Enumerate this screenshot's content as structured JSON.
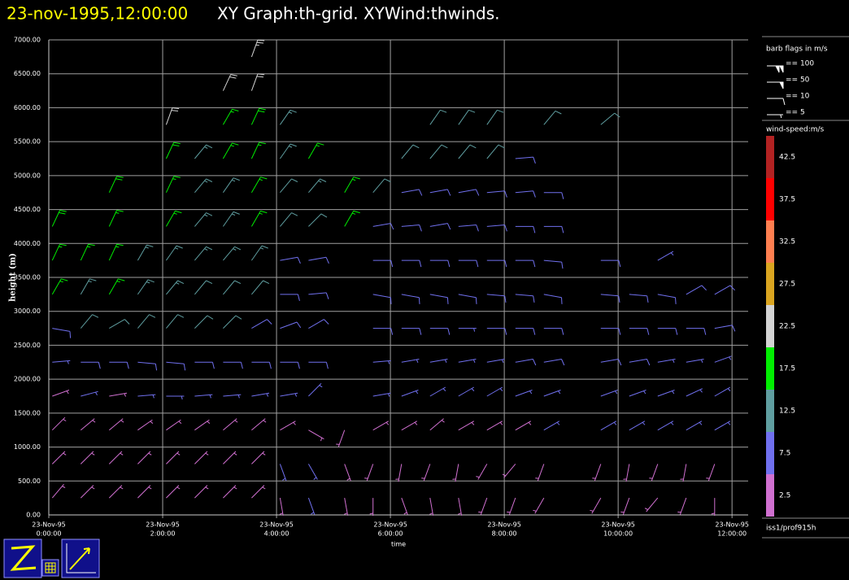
{
  "chart_data": {
    "type": "wind-barb",
    "title_time": "23-nov-1995,12:00:00",
    "title": "XY Graph:th-grid.  XYWind:thwinds.",
    "y_label": "height (m)",
    "x_label": "time",
    "ylim": [
      0,
      7000
    ],
    "yticks": [
      {
        "value": 0,
        "label": "0.00"
      },
      {
        "value": 500,
        "label": "500.00"
      },
      {
        "value": 1000,
        "label": "1000.00"
      },
      {
        "value": 1500,
        "label": "1500.00"
      },
      {
        "value": 2000,
        "label": "2000.00"
      },
      {
        "value": 2500,
        "label": "2500.00"
      },
      {
        "value": 3000,
        "label": "3000.00"
      },
      {
        "value": 3500,
        "label": "3500.00"
      },
      {
        "value": 4000,
        "label": "4000.00"
      },
      {
        "value": 4500,
        "label": "4500.00"
      },
      {
        "value": 5000,
        "label": "5000.00"
      },
      {
        "value": 5500,
        "label": "5500.00"
      },
      {
        "value": 6000,
        "label": "6000.00"
      },
      {
        "value": 6500,
        "label": "6500.00"
      },
      {
        "value": 7000,
        "label": "7000.00"
      }
    ],
    "xlim": [
      "0:00:00",
      "12:17:00"
    ],
    "xticks": [
      {
        "value": "0:00:00",
        "label": [
          "23-Nov-95",
          "0:00:00"
        ]
      },
      {
        "value": "2:00:00",
        "label": [
          "23-Nov-95",
          "2:00:00"
        ]
      },
      {
        "value": "4:00:00",
        "label": [
          "23-Nov-95",
          "4:00:00"
        ]
      },
      {
        "value": "6:00:00",
        "label": [
          "23-Nov-95",
          "6:00:00"
        ]
      },
      {
        "value": "8:00:00",
        "label": [
          "23-Nov-95",
          "8:00:00"
        ]
      },
      {
        "value": "10:00:00",
        "label": [
          "23-Nov-95",
          "10:00:00"
        ]
      },
      {
        "value": "12:00:00",
        "label": [
          "23-Nov-95",
          "12:00:00"
        ]
      }
    ],
    "grid": true,
    "grid_color": "#a0a0a0",
    "heights": [
      250,
      750,
      1250,
      1750,
      2250,
      2750,
      3250,
      3750,
      4250,
      4750,
      5250,
      5750,
      6250,
      6750
    ],
    "profiles": [
      {
        "time": "0:02:00",
        "speed": [
          3,
          3,
          4,
          4,
          7,
          9,
          16,
          17,
          18,
          null,
          null,
          null,
          null,
          null
        ],
        "direction": [
          40,
          45,
          45,
          70,
          85,
          100,
          30,
          25,
          25,
          null,
          null,
          null,
          null,
          null
        ]
      },
      {
        "time": "0:32:00",
        "speed": [
          3,
          4,
          4,
          6,
          8,
          12,
          15,
          16,
          null,
          null,
          null,
          null,
          null,
          null
        ],
        "direction": [
          45,
          45,
          50,
          75,
          90,
          40,
          30,
          25,
          null,
          null,
          null,
          null,
          null,
          null
        ]
      },
      {
        "time": "1:02:00",
        "speed": [
          3,
          3,
          4,
          5,
          8,
          12,
          16,
          17,
          17,
          18,
          null,
          null,
          null,
          null
        ],
        "direction": [
          45,
          45,
          50,
          80,
          90,
          60,
          30,
          25,
          25,
          25,
          null,
          null,
          null,
          null
        ]
      },
      {
        "time": "1:32:00",
        "speed": [
          3,
          4,
          4,
          7,
          8,
          12,
          13,
          14,
          null,
          null,
          null,
          null,
          null,
          null
        ],
        "direction": [
          45,
          45,
          55,
          85,
          95,
          40,
          35,
          30,
          null,
          null,
          null,
          null,
          null,
          null
        ]
      },
      {
        "time": "2:02:00",
        "speed": [
          3,
          4,
          5,
          7,
          8,
          12,
          13,
          14,
          16,
          17,
          18,
          22,
          null,
          null
        ],
        "direction": [
          45,
          45,
          55,
          90,
          95,
          40,
          40,
          35,
          30,
          25,
          25,
          20,
          null,
          null
        ]
      },
      {
        "time": "2:32:00",
        "speed": [
          3,
          4,
          5,
          7,
          8,
          11,
          12,
          13,
          13,
          13,
          13,
          null,
          null,
          null
        ],
        "direction": [
          45,
          45,
          55,
          85,
          90,
          45,
          40,
          40,
          40,
          40,
          40,
          null,
          null,
          null
        ]
      },
      {
        "time": "3:02:00",
        "speed": [
          3,
          4,
          5,
          7,
          8,
          11,
          12,
          13,
          13,
          14,
          16,
          17,
          22,
          null
        ],
        "direction": [
          45,
          45,
          50,
          85,
          90,
          45,
          40,
          40,
          35,
          35,
          30,
          30,
          25,
          null
        ]
      },
      {
        "time": "3:32:00",
        "speed": [
          3,
          4,
          5,
          7,
          8,
          9,
          12,
          13,
          16,
          17,
          17,
          18,
          22,
          23
        ],
        "direction": [
          45,
          45,
          50,
          80,
          90,
          60,
          40,
          35,
          30,
          30,
          25,
          25,
          20,
          20
        ]
      },
      {
        "time": "4:02:00",
        "speed": [
          5,
          6,
          5,
          7,
          8,
          9,
          8,
          9,
          11,
          12,
          13,
          13,
          null,
          null
        ],
        "direction": [
          170,
          160,
          60,
          80,
          90,
          70,
          90,
          80,
          40,
          40,
          35,
          35,
          null,
          null
        ]
      },
      {
        "time": "4:32:00",
        "speed": [
          6,
          7,
          4,
          6,
          8,
          9,
          8,
          9,
          11,
          13,
          16,
          null,
          null,
          null
        ],
        "direction": [
          160,
          150,
          120,
          45,
          90,
          60,
          85,
          80,
          45,
          40,
          30,
          null,
          null,
          null
        ]
      },
      {
        "time": "5:10:00",
        "speed": [
          4,
          3,
          3,
          null,
          null,
          null,
          null,
          null,
          16,
          17,
          null,
          null,
          null,
          null
        ],
        "direction": [
          170,
          160,
          200,
          null,
          null,
          null,
          null,
          null,
          30,
          30,
          null,
          null,
          null,
          null
        ]
      },
      {
        "time": "5:40:00",
        "speed": [
          4,
          3,
          5,
          6,
          7,
          8,
          9,
          9,
          8,
          12,
          null,
          null,
          null,
          null
        ],
        "direction": [
          180,
          200,
          60,
          80,
          85,
          90,
          100,
          90,
          80,
          40,
          null,
          null,
          null,
          null
        ]
      },
      {
        "time": "6:10:00",
        "speed": [
          5,
          4,
          5,
          6,
          7,
          8,
          9,
          9,
          9,
          9,
          12,
          null,
          null,
          null
        ],
        "direction": [
          160,
          190,
          60,
          70,
          80,
          90,
          100,
          90,
          85,
          80,
          40,
          null,
          null,
          null
        ]
      },
      {
        "time": "6:40:00",
        "speed": [
          5,
          3,
          5,
          6,
          7,
          8,
          8,
          9,
          9,
          9,
          11,
          12,
          null,
          null
        ],
        "direction": [
          170,
          200,
          50,
          60,
          80,
          90,
          100,
          90,
          80,
          80,
          40,
          35,
          null,
          null
        ]
      },
      {
        "time": "7:10:00",
        "speed": [
          4,
          3,
          5,
          6,
          7,
          7,
          8,
          8,
          9,
          9,
          12,
          12,
          null,
          null
        ],
        "direction": [
          170,
          190,
          60,
          60,
          80,
          90,
          100,
          90,
          85,
          80,
          40,
          35,
          null,
          null
        ]
      },
      {
        "time": "7:40:00",
        "speed": [
          4,
          3,
          5,
          6,
          7,
          8,
          8,
          8,
          9,
          9,
          11,
          12,
          null,
          null
        ],
        "direction": [
          200,
          210,
          60,
          60,
          80,
          90,
          95,
          90,
          85,
          85,
          40,
          35,
          null,
          null
        ]
      },
      {
        "time": "8:10:00",
        "speed": [
          4,
          3,
          5,
          6,
          8,
          8,
          8,
          8,
          8,
          9,
          9,
          null,
          null,
          null
        ],
        "direction": [
          200,
          220,
          60,
          70,
          80,
          90,
          95,
          90,
          90,
          85,
          85,
          null,
          null,
          null
        ]
      },
      {
        "time": "8:40:00",
        "speed": [
          4,
          5,
          6,
          7,
          8,
          8,
          8,
          8,
          9,
          9,
          null,
          12,
          null,
          null
        ],
        "direction": [
          210,
          200,
          60,
          70,
          80,
          90,
          100,
          95,
          90,
          90,
          null,
          40,
          null,
          null
        ]
      },
      {
        "time": "9:40:00",
        "speed": [
          4,
          5,
          6,
          7,
          8,
          8,
          8,
          8,
          null,
          null,
          null,
          12,
          null,
          null
        ],
        "direction": [
          210,
          200,
          60,
          70,
          80,
          90,
          95,
          90,
          null,
          null,
          null,
          50,
          null,
          null
        ]
      },
      {
        "time": "10:10:00",
        "speed": [
          4,
          5,
          6,
          7,
          8,
          8,
          8,
          null,
          null,
          null,
          null,
          null,
          null,
          null
        ],
        "direction": [
          200,
          190,
          60,
          70,
          80,
          90,
          95,
          null,
          null,
          null,
          null,
          null,
          null,
          null
        ]
      },
      {
        "time": "10:40:00",
        "speed": [
          4,
          5,
          6,
          7,
          7,
          8,
          8,
          7,
          null,
          null,
          null,
          null,
          null,
          null
        ],
        "direction": [
          220,
          200,
          60,
          70,
          80,
          90,
          100,
          60,
          null,
          null,
          null,
          null,
          null,
          null
        ]
      },
      {
        "time": "11:10:00",
        "speed": [
          4,
          5,
          6,
          7,
          7,
          8,
          8,
          null,
          null,
          null,
          null,
          null,
          null,
          null
        ],
        "direction": [
          200,
          190,
          60,
          65,
          80,
          90,
          60,
          null,
          null,
          null,
          null,
          null,
          null,
          null
        ]
      },
      {
        "time": "11:40:00",
        "speed": [
          4,
          5,
          6,
          7,
          7,
          8,
          8,
          null,
          null,
          null,
          null,
          null,
          null,
          null
        ],
        "direction": [
          180,
          200,
          60,
          60,
          70,
          80,
          60,
          null,
          null,
          null,
          null,
          null,
          null,
          null
        ]
      }
    ],
    "flag_legend": {
      "title": "barb flags in m/s",
      "items": [
        {
          "value": 100,
          "label": "== 100"
        },
        {
          "value": 50,
          "label": "== 50"
        },
        {
          "value": 10,
          "label": "== 10"
        },
        {
          "value": 5,
          "label": "== 5"
        }
      ]
    },
    "color_legend": {
      "title": "wind-speed:m/s",
      "levels": [
        {
          "value": 2.5,
          "color": "#d070d0"
        },
        {
          "value": 7.5,
          "color": "#7070ee"
        },
        {
          "value": 12.5,
          "color": "#5f9ea0"
        },
        {
          "value": 17.5,
          "color": "#00ee00"
        },
        {
          "value": 22.5,
          "color": "#d3d3d3"
        },
        {
          "value": 27.5,
          "color": "#daa520"
        },
        {
          "value": 32.5,
          "color": "#ff7f50"
        },
        {
          "value": 37.5,
          "color": "#ff0000"
        },
        {
          "value": 42.5,
          "color": "#b22222"
        }
      ]
    },
    "platform": "iss1/prof915h"
  }
}
